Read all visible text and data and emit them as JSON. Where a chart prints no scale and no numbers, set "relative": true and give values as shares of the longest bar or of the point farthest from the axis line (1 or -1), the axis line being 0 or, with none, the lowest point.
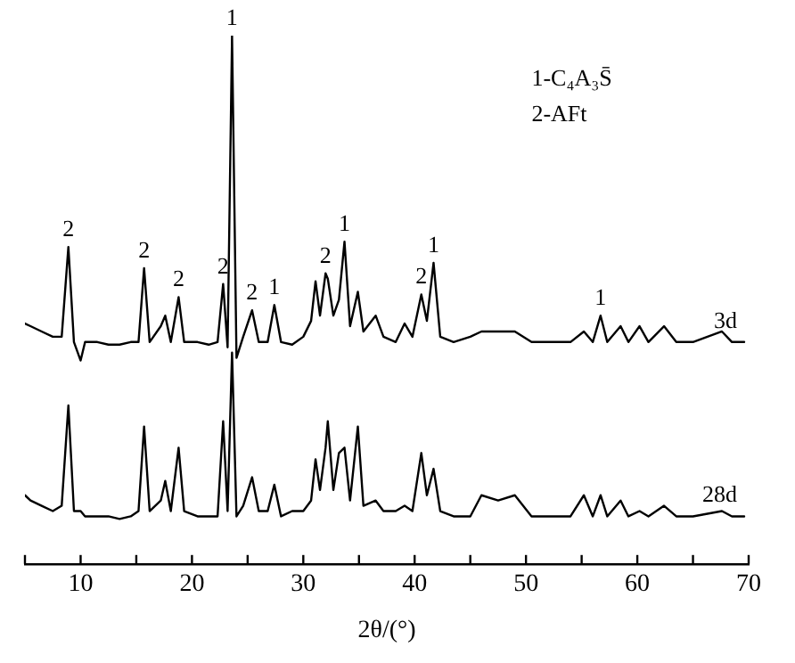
{
  "chart_data": {
    "type": "line",
    "relative": true,
    "xlabel": "2θ/(°)",
    "legend": false,
    "marker": "none",
    "line_style": "solid",
    "xlim": [
      5,
      70
    ],
    "xticks": [
      {
        "value": 5,
        "label": null
      },
      10,
      {
        "value": 15,
        "label": null
      },
      20,
      {
        "value": 25,
        "label": null
      },
      30,
      {
        "value": 35,
        "label": null
      },
      40,
      {
        "value": 45,
        "label": null
      },
      50,
      {
        "value": 55,
        "label": null
      },
      60,
      {
        "value": 65,
        "label": null
      },
      70
    ],
    "x": [
      5,
      5.5,
      6.5,
      7.5,
      8.3,
      8.9,
      9.4,
      10,
      10.4,
      11.5,
      12.5,
      13.5,
      14.5,
      15.2,
      15.7,
      16.2,
      17.2,
      17.6,
      18.1,
      18.8,
      19.3,
      20.5,
      21.5,
      22.3,
      22.8,
      23.2,
      23.6,
      24.0,
      24.6,
      25.4,
      26.0,
      26.8,
      27.4,
      28.0,
      29,
      30,
      30.7,
      31.1,
      31.5,
      32.0,
      32.2,
      32.7,
      33.2,
      33.7,
      34.2,
      34.9,
      35.4,
      36.5,
      37.2,
      38.3,
      39.1,
      39.8,
      40.6,
      41.1,
      41.7,
      42.3,
      43.5,
      45,
      46,
      47.5,
      49,
      50.5,
      52,
      54,
      55.2,
      56.0,
      56.7,
      57.3,
      58.5,
      59.2,
      60.2,
      61,
      62.4,
      63.5,
      65,
      67.6,
      68.5,
      69.6
    ],
    "series": [
      {
        "name": "3d",
        "color": "#000000",
        "values": [
          0.455,
          0.45,
          0.44,
          0.43,
          0.43,
          0.6,
          0.42,
          0.385,
          0.42,
          0.42,
          0.415,
          0.415,
          0.42,
          0.42,
          0.56,
          0.42,
          0.45,
          0.47,
          0.42,
          0.505,
          0.42,
          0.42,
          0.415,
          0.42,
          0.53,
          0.41,
          1.0,
          0.39,
          0.43,
          0.48,
          0.42,
          0.42,
          0.49,
          0.42,
          0.415,
          0.43,
          0.46,
          0.535,
          0.47,
          0.55,
          0.54,
          0.47,
          0.5,
          0.61,
          0.45,
          0.515,
          0.44,
          0.47,
          0.43,
          0.42,
          0.455,
          0.43,
          0.51,
          0.46,
          0.57,
          0.43,
          0.42,
          0.43,
          0.44,
          0.44,
          0.44,
          0.42,
          0.42,
          0.42,
          0.44,
          0.42,
          0.47,
          0.42,
          0.45,
          0.42,
          0.45,
          0.42,
          0.45,
          0.42,
          0.42,
          0.44,
          0.42,
          0.42
        ]
      },
      {
        "name": "28d",
        "color": "#000000",
        "values": [
          0.13,
          0.12,
          0.11,
          0.1,
          0.11,
          0.3,
          0.1,
          0.1,
          0.09,
          0.09,
          0.09,
          0.085,
          0.09,
          0.1,
          0.26,
          0.1,
          0.12,
          0.157,
          0.1,
          0.22,
          0.1,
          0.09,
          0.09,
          0.09,
          0.27,
          0.1,
          0.4,
          0.09,
          0.11,
          0.164,
          0.1,
          0.1,
          0.15,
          0.09,
          0.1,
          0.1,
          0.12,
          0.198,
          0.14,
          0.22,
          0.27,
          0.14,
          0.21,
          0.22,
          0.12,
          0.26,
          0.11,
          0.12,
          0.1,
          0.1,
          0.11,
          0.1,
          0.21,
          0.13,
          0.18,
          0.1,
          0.09,
          0.09,
          0.13,
          0.12,
          0.13,
          0.09,
          0.09,
          0.09,
          0.13,
          0.09,
          0.13,
          0.09,
          0.12,
          0.09,
          0.1,
          0.09,
          0.11,
          0.09,
          0.09,
          0.1,
          0.09,
          0.09
        ]
      }
    ],
    "annotations": [
      "1-C₄A₃S̄",
      "2-AFt",
      {
        "text": "2",
        "x": 8.9,
        "y": 0.6
      },
      {
        "text": "2",
        "x": 15.7,
        "y": 0.56
      },
      {
        "text": "2",
        "x": 18.8,
        "y": 0.505
      },
      {
        "text": "2",
        "x": 22.8,
        "y": 0.53
      },
      {
        "text": "1",
        "x": 23.6,
        "y": 1.0
      },
      {
        "text": "2",
        "x": 25.4,
        "y": 0.48
      },
      {
        "text": "1",
        "x": 27.4,
        "y": 0.49
      },
      {
        "text": "2",
        "x": 32.0,
        "y": 0.55
      },
      {
        "text": "1",
        "x": 33.7,
        "y": 0.61
      },
      {
        "text": "2",
        "x": 40.6,
        "y": 0.51
      },
      {
        "text": "1",
        "x": 41.7,
        "y": 0.57
      },
      {
        "text": "1",
        "x": 56.7,
        "y": 0.47
      }
    ]
  }
}
